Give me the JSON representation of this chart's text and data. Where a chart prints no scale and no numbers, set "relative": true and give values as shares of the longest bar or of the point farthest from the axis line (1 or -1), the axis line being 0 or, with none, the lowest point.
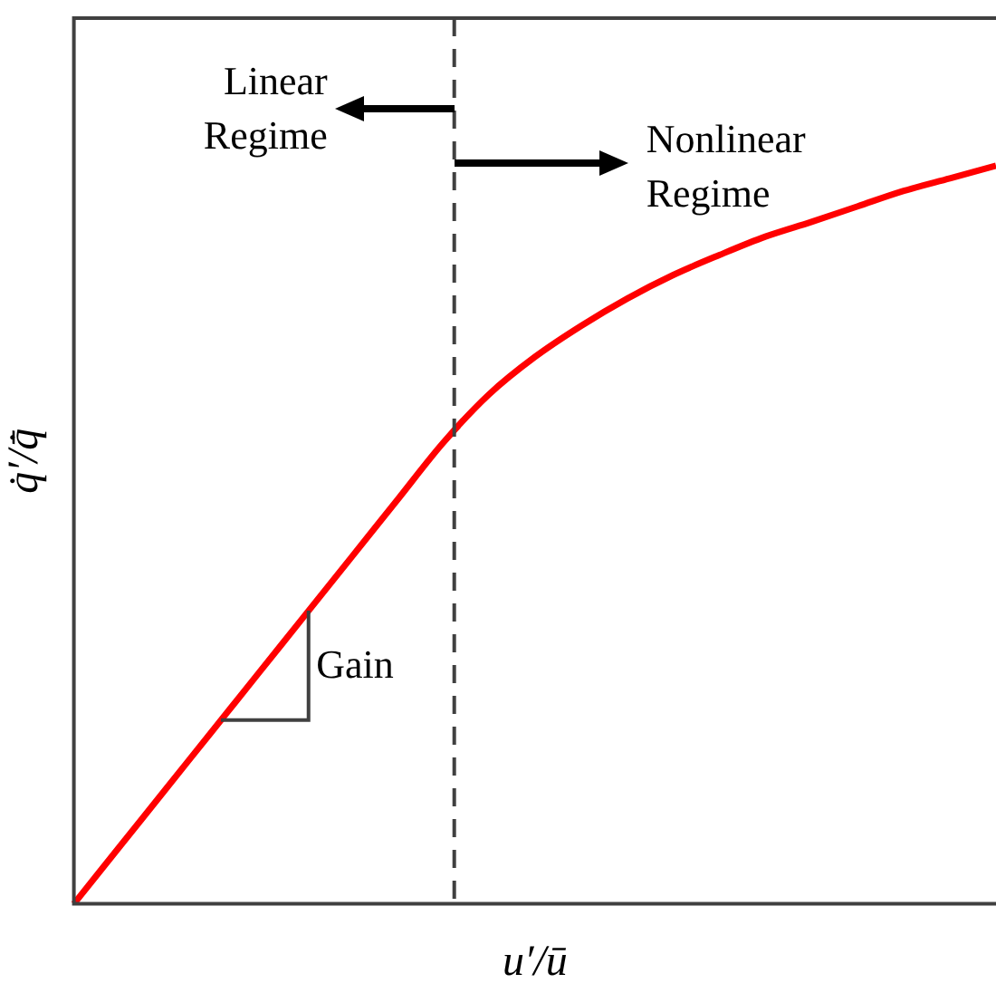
{
  "chart_data": {
    "type": "line",
    "relative": true,
    "xlabel": "u′/ū",
    "ylabel": "q̇′/q̇̄",
    "categories": [
      null,
      null,
      null,
      null,
      null,
      null,
      null,
      null,
      null,
      null,
      null,
      null,
      null,
      null,
      null,
      null,
      null,
      null,
      null,
      null,
      null
    ],
    "series": [
      {
        "color": "#ff0000",
        "values": [
          0,
          0.078,
          0.156,
          0.234,
          0.312,
          0.39,
          0.468,
          0.546,
          0.624,
          0.69,
          0.741,
          0.783,
          0.82,
          0.852,
          0.879,
          0.904,
          0.924,
          0.945,
          0.966,
          0.983,
          1
        ]
      }
    ],
    "annotations": [
      "Linear\nRegime",
      "Nonlinear\nRegime",
      "Gain"
    ],
    "grid": false,
    "legend": false,
    "marker": "none",
    "line_style": "solid"
  }
}
